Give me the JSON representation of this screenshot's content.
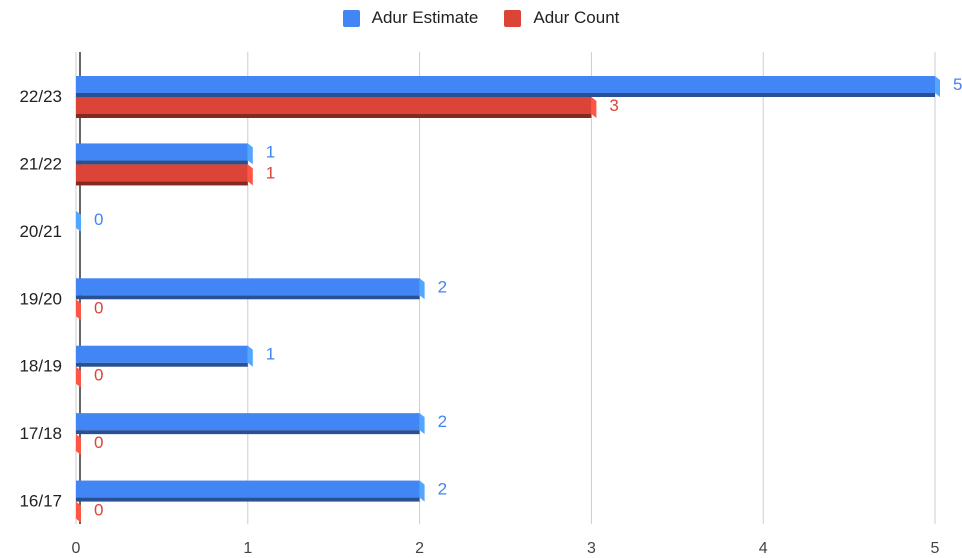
{
  "chart_data": {
    "type": "bar",
    "orientation": "horizontal",
    "categories": [
      "22/23",
      "21/22",
      "20/21",
      "19/20",
      "18/19",
      "17/18",
      "16/17"
    ],
    "series": [
      {
        "name": "Adur Estimate",
        "color": "#4285f4",
        "values": [
          5,
          1,
          0,
          2,
          1,
          2,
          2
        ]
      },
      {
        "name": "Adur Count",
        "color": "#db4437",
        "values": [
          3,
          1,
          null,
          0,
          0,
          0,
          0
        ]
      }
    ],
    "xlim": [
      0,
      5
    ],
    "xticks": [
      0,
      1,
      2,
      3,
      4,
      5
    ],
    "grid": true,
    "legend_position": "top",
    "data_labels": true
  }
}
